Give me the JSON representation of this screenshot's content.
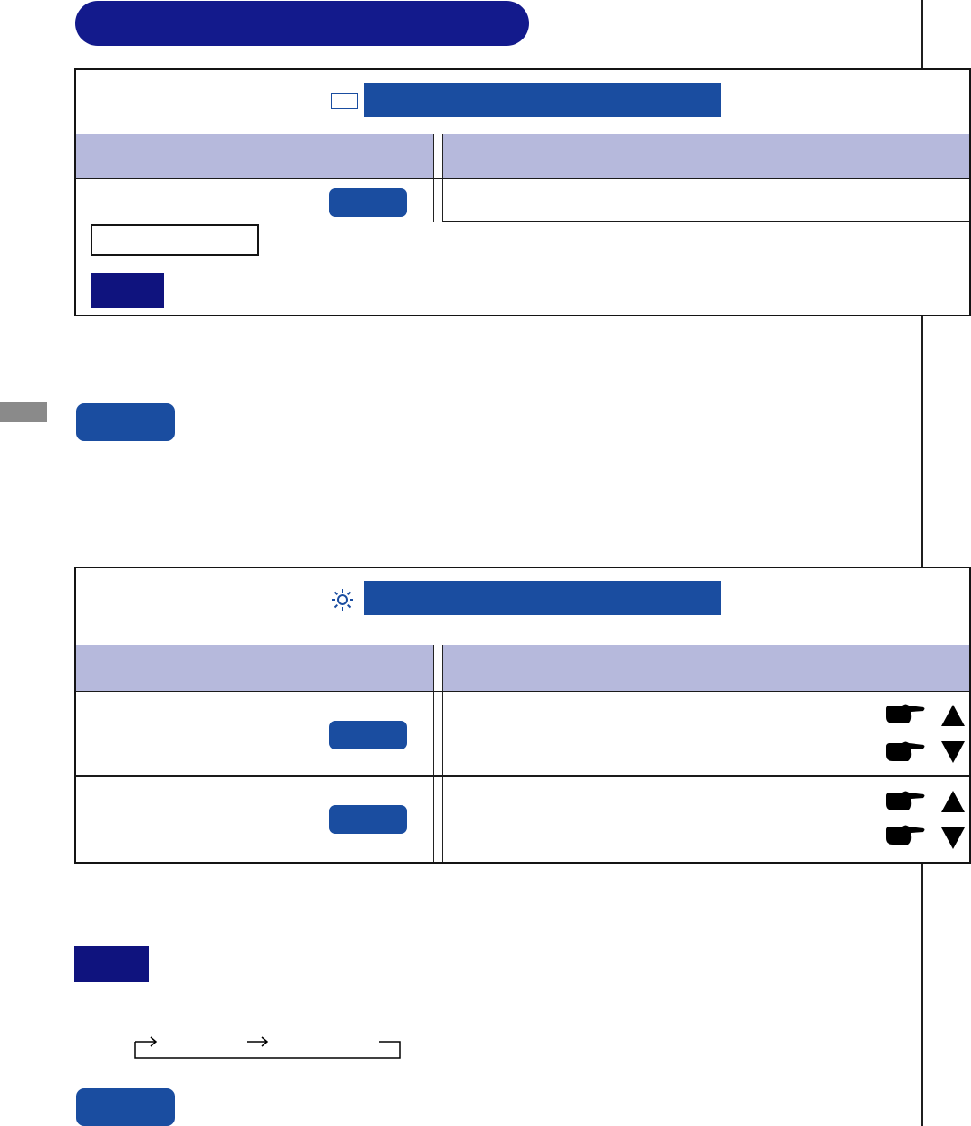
{
  "page": {
    "colors": {
      "navy": "#131a8c",
      "blue": "#1a4da0",
      "header_band": "#b6b9dc",
      "tab_gray": "#8a8a8a"
    }
  },
  "panel_1": {
    "icon": "square-outline-icon",
    "rows": 1,
    "extra_controls": [
      "text-outline-box",
      "navy-label-block"
    ]
  },
  "panel_2": {
    "icon": "sun-brightness-icon",
    "rows": 2,
    "row_icons": [
      "pointing-hand-icon",
      "triangle-up-icon",
      "triangle-down-icon"
    ]
  },
  "cycle_diagram": {
    "icons": [
      "arrow-right-icon",
      "arrow-right-icon"
    ]
  }
}
